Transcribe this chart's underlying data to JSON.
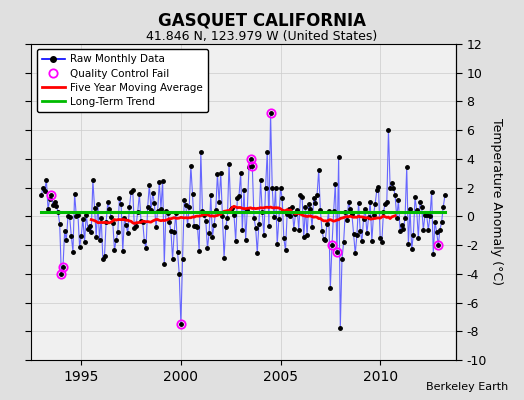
{
  "title": "GASQUET CALIFORNIA",
  "subtitle": "41.846 N, 123.979 W (United States)",
  "ylabel": "Temperature Anomaly (°C)",
  "credit": "Berkeley Earth",
  "ylim": [
    -10,
    12
  ],
  "yticks": [
    -10,
    -8,
    -6,
    -4,
    -2,
    0,
    2,
    4,
    6,
    8,
    10,
    12
  ],
  "xlim": [
    1992.5,
    2013.8
  ],
  "xticks": [
    1995,
    2000,
    2005,
    2010
  ],
  "bg_color": "#e0e0e0",
  "plot_bg": "#f0f0f0",
  "raw_line_color": "#6666ff",
  "raw_dot_color": "#000000",
  "ma_color": "#ff0000",
  "trend_color": "#00bb00",
  "qc_color": "#ff00ff",
  "legend_raw_line": "#0000ff",
  "seed": 42
}
